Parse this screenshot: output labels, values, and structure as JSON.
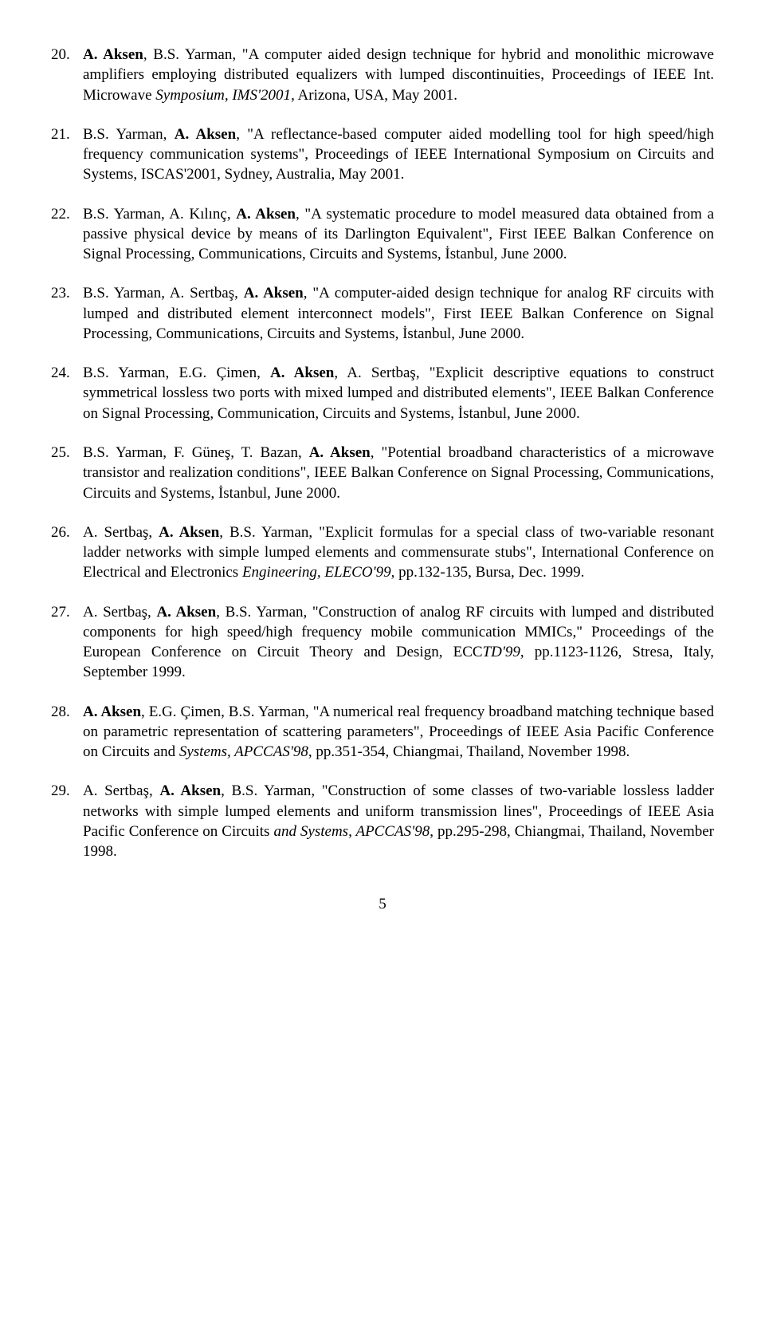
{
  "references": [
    {
      "num": "20.",
      "segments": [
        {
          "t": "A. Aksen",
          "b": true
        },
        {
          "t": ", B.S. Yarman, \"A computer aided design technique for hybrid and monolithic microwave amplifiers employing distributed equalizers with lumped discontinuities, Proceedings of IEEE Int. Microwave "
        },
        {
          "t": "Symposium, IMS'2001",
          "i": true
        },
        {
          "t": ", Arizona, USA, May 2001."
        }
      ]
    },
    {
      "num": "21.",
      "segments": [
        {
          "t": "B.S. Yarman, "
        },
        {
          "t": "A. Aksen",
          "b": true
        },
        {
          "t": ", \"A reflectance-based computer aided modelling tool for high speed/high frequency communication systems\", Proceedings of IEEE International Symposium on Circuits and Systems, ISCAS'2001, Sydney, Australia, May 2001."
        }
      ]
    },
    {
      "num": "22.",
      "segments": [
        {
          "t": "B.S. Yarman, A. Kılınç, "
        },
        {
          "t": "A. Aksen",
          "b": true
        },
        {
          "t": ", \"A systematic procedure to model measured data obtained from a passive physical device by means of its Darlington Equivalent\", First IEEE Balkan Conference on Signal Processing, Communications, Circuits and Systems, İstanbul, June 2000."
        }
      ]
    },
    {
      "num": "23.",
      "segments": [
        {
          "t": "B.S. Yarman, A. Sertbaş, "
        },
        {
          "t": "A. Aksen",
          "b": true
        },
        {
          "t": ", \"A computer-aided design technique for analog RF circuits with lumped and distributed element interconnect models\", First IEEE Balkan Conference on Signal Processing, Communications, Circuits and Systems, İstanbul,  June 2000."
        }
      ]
    },
    {
      "num": "24.",
      "segments": [
        {
          "t": "B.S. Yarman, E.G. Çimen, "
        },
        {
          "t": "A. Aksen",
          "b": true
        },
        {
          "t": ", A. Sertbaş, \"Explicit descriptive equations to construct symmetrical lossless two ports with mixed lumped and distributed elements\",  IEEE Balkan Conference on Signal Processing, Communication, Circuits and Systems, İstanbul, June 2000."
        }
      ]
    },
    {
      "num": "25.",
      "segments": [
        {
          "t": "B.S. Yarman, F. Güneş, T. Bazan, "
        },
        {
          "t": "A. Aksen",
          "b": true
        },
        {
          "t": ", \"Potential broadband characteristics of a microwave transistor and realization conditions\", IEEE Balkan Conference on Signal Processing, Communications, Circuits and Systems, İstanbul, June 2000."
        }
      ]
    },
    {
      "num": "26.",
      "segments": [
        {
          "t": "A. Sertbaş, "
        },
        {
          "t": "A. Aksen",
          "b": true
        },
        {
          "t": ", B.S. Yarman, \"Explicit formulas for a special class of two-variable resonant ladder networks with simple lumped elements and commensurate stubs\", International Conference on Electrical and Electronics "
        },
        {
          "t": "Engineering, ELECO'99",
          "i": true
        },
        {
          "t": ", pp.132-135, Bursa, Dec. 1999."
        }
      ]
    },
    {
      "num": "27.",
      "segments": [
        {
          "t": "A. Sertbaş, "
        },
        {
          "t": "A. Aksen",
          "b": true
        },
        {
          "t": ", B.S. Yarman, \"Construction of analog RF circuits with lumped and distributed components for high speed/high frequency mobile communication MMICs,\" Proceedings of the European Conference on Circuit Theory and Design, ECC"
        },
        {
          "t": "TD'99",
          "i": true
        },
        {
          "t": ", pp.1123-1126, Stresa, Italy, September 1999."
        }
      ]
    },
    {
      "num": "28.",
      "segments": [
        {
          "t": "A. Aksen",
          "b": true
        },
        {
          "t": ", E.G. Çimen, B.S. Yarman, \"A numerical real frequency broadband matching technique based on  parametric representation of scattering parameters\", Proceedings of IEEE Asia Pacific Conference on Circuits and "
        },
        {
          "t": "Systems, APCCAS'98",
          "i": true
        },
        {
          "t": ", pp.351-354, Chiangmai, Thailand, November 1998."
        }
      ]
    },
    {
      "num": "29.",
      "segments": [
        {
          "t": "A. Sertbaş, "
        },
        {
          "t": "A. Aksen",
          "b": true
        },
        {
          "t": ", B.S. Yarman, \"Construction of some classes of two-variable lossless ladder networks with simple lumped elements and uniform transmission lines\", Proceedings of IEEE Asia Pacific Conference on Circuits "
        },
        {
          "t": "and Systems, APCCAS'98",
          "i": true
        },
        {
          "t": ", pp.295-298,  Chiangmai, Thailand, November 1998."
        }
      ]
    }
  ],
  "pageNumber": "5"
}
